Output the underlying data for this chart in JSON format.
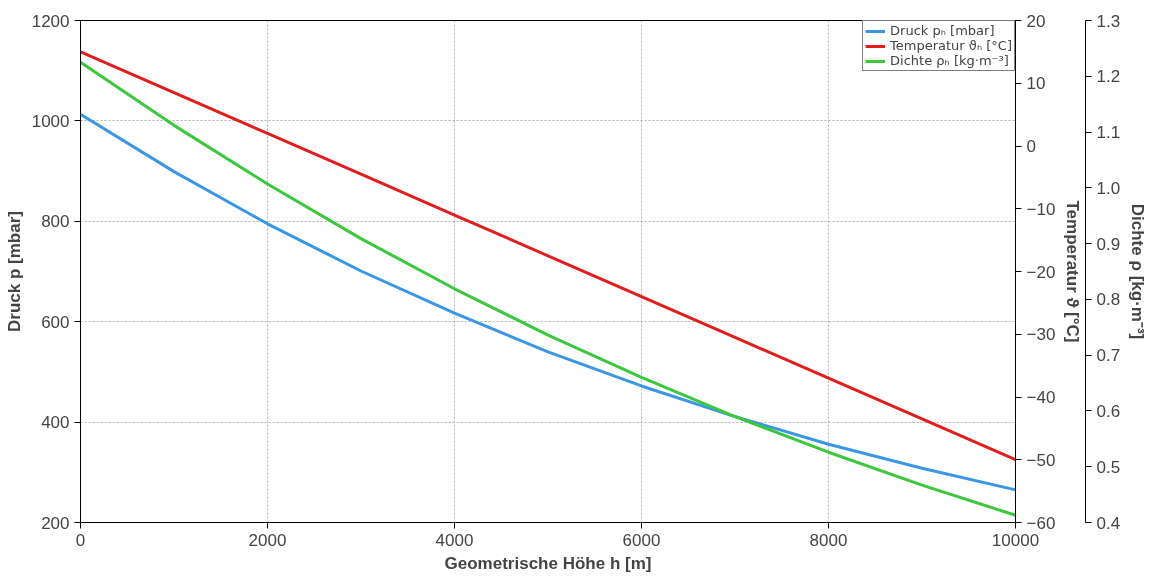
{
  "chart_data": {
    "type": "line",
    "xlabel": "Geometrische Höhe h [m]",
    "ylabel": "Druck p [mbar]",
    "y2label": "Temperatur ϑ [°C]",
    "y3label": "Dichte ρ [kg·m⁻³]",
    "x": [
      0,
      1000,
      2000,
      3000,
      4000,
      5000,
      6000,
      7000,
      8000,
      9000,
      10000
    ],
    "series": [
      {
        "name": "Druck pₕ [mbar]",
        "color": "#3c96e6",
        "values": [
          1013,
          899,
          795,
          701,
          617,
          540,
          472,
          411,
          356,
          308,
          265
        ]
      },
      {
        "name": "Temperatur ϑₕ [°C]",
        "color": "#e01e1e",
        "axis": "y2",
        "values": [
          15,
          8.5,
          2,
          -4.5,
          -11,
          -17.5,
          -24,
          -30.5,
          -37,
          -43.5,
          -50
        ]
      },
      {
        "name": "Dichte ρₕ [kg·m⁻³]",
        "color": "#3cc83c",
        "axis": "y3",
        "values": [
          1.225,
          1.112,
          1.007,
          0.909,
          0.819,
          0.736,
          0.66,
          0.59,
          0.526,
          0.467,
          0.413
        ]
      }
    ],
    "xlim": [
      0,
      10000
    ],
    "xticks": [
      0,
      2000,
      4000,
      6000,
      8000,
      10000
    ],
    "ylim": [
      200,
      1200
    ],
    "yticks": [
      200,
      400,
      600,
      800,
      1000,
      1200
    ],
    "y2lim": [
      -60,
      20
    ],
    "y2ticks": [
      -60,
      -50,
      -40,
      -30,
      -20,
      -10,
      0,
      10,
      20
    ],
    "y3lim": [
      0.4,
      1.3
    ],
    "y3ticks": [
      0.4,
      0.5,
      0.6,
      0.7,
      0.8,
      0.9,
      {
        "value": 1.0,
        "label": "1.0"
      },
      1.1,
      1.2,
      1.3
    ],
    "grid": true,
    "legend": "top right",
    "marker": "none",
    "line_style": "solid"
  }
}
